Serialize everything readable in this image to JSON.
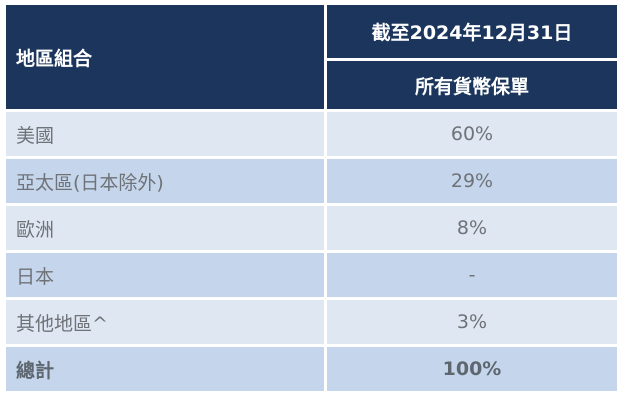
{
  "header": {
    "region_label": "地區組合",
    "date_label": "截至2024年12月31日",
    "column_label": "所有貨幣保單"
  },
  "rows": [
    {
      "region": "美國",
      "value": "60%"
    },
    {
      "region": "亞太區(日本除外)",
      "value": "29%"
    },
    {
      "region": "歐洲",
      "value": "8%"
    },
    {
      "region": "日本",
      "value": "-"
    },
    {
      "region": "其他地區^",
      "value": "3%"
    }
  ],
  "total": {
    "label": "總計",
    "value": "100%"
  },
  "colors": {
    "header_bg": "#1b355c",
    "row_light": "#dfe7f3",
    "row_mid": "#c5d6ec"
  }
}
